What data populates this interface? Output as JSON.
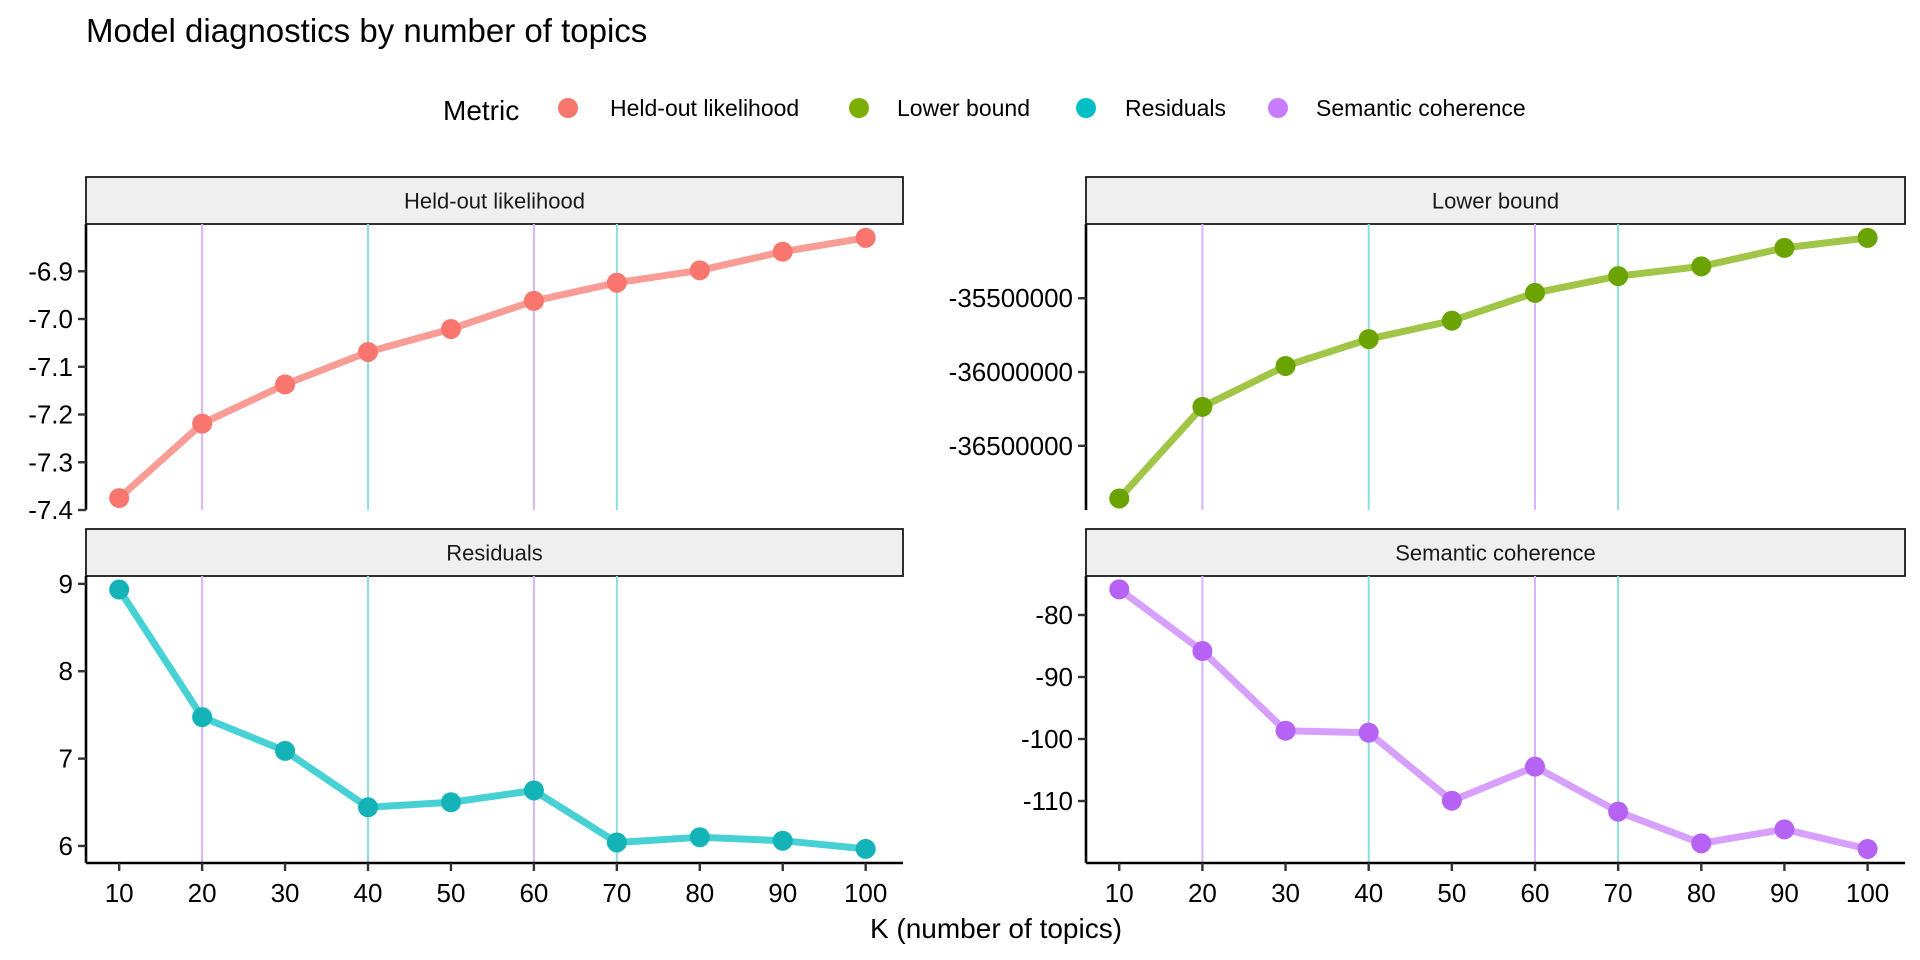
{
  "chart_data": {
    "type": "line",
    "title": "Model diagnostics by number of topics",
    "xlabel": "K (number of topics)",
    "legend": {
      "title": "Metric",
      "position": "top",
      "entries": [
        {
          "label": "Held-out likelihood",
          "color": "#F8766D"
        },
        {
          "label": "Lower bound",
          "color": "#7CAE00"
        },
        {
          "label": "Residuals",
          "color": "#00BFC4"
        },
        {
          "label": "Semantic coherence",
          "color": "#C77CFF"
        }
      ]
    },
    "x": [
      10,
      20,
      30,
      40,
      50,
      60,
      70,
      80,
      90,
      100
    ],
    "x_ticks": [
      "10",
      "20",
      "30",
      "40",
      "50",
      "60",
      "70",
      "80",
      "90",
      "100"
    ],
    "xlim": [
      6,
      104.5
    ],
    "reference_lines": [
      {
        "x": 20,
        "color": "#D9B3FF"
      },
      {
        "x": 40,
        "color": "#8EDCDC"
      },
      {
        "x": 60,
        "color": "#D9B3FF"
      },
      {
        "x": 70,
        "color": "#8EDCDC"
      }
    ],
    "facets": [
      {
        "name": "Held-out likelihood",
        "color": "#F8766D",
        "line_color": "#F8766D",
        "values": [
          -7.375,
          -7.219,
          -7.137,
          -7.069,
          -7.021,
          -6.962,
          -6.924,
          -6.898,
          -6.859,
          -6.83
        ],
        "ylim": [
          -7.4,
          -6.801
        ],
        "y_ticks": [
          -6.9,
          -7.0,
          -7.1,
          -7.2,
          -7.3,
          -7.4
        ],
        "y_tick_labels": [
          "-6.9",
          "-7.0",
          "-7.1",
          "-7.2",
          "-7.3",
          "-7.4"
        ]
      },
      {
        "name": "Lower bound",
        "color": "#6BA300",
        "line_color": "#7CAE00",
        "values": [
          -36857000,
          -36236000,
          -35959000,
          -35777000,
          -35652000,
          -35464000,
          -35350000,
          -35284000,
          -35159000,
          -35091000
        ],
        "ylim": [
          -36935000,
          -34997000
        ],
        "y_ticks": [
          -35500000,
          -36000000,
          -36500000
        ],
        "y_tick_labels": [
          "-35500000",
          "-36000000",
          "-36500000"
        ]
      },
      {
        "name": "Residuals",
        "color": "#14B3B8",
        "line_color": "#00BFC4",
        "values": [
          8.935,
          7.475,
          7.088,
          6.443,
          6.5,
          6.635,
          6.04,
          6.1,
          6.06,
          5.966
        ],
        "ylim": [
          5.805,
          9.09
        ],
        "y_ticks": [
          9,
          8,
          7,
          6
        ],
        "y_tick_labels": [
          "9",
          "8",
          "7",
          "6"
        ]
      },
      {
        "name": "Semantic coherence",
        "color": "#B562F5",
        "line_color": "#C77CFF",
        "values": [
          -75.86,
          -85.81,
          -98.66,
          -98.98,
          -109.95,
          -104.46,
          -111.72,
          -116.83,
          -114.57,
          -117.74
        ],
        "ylim": [
          -120.0,
          -73.71
        ],
        "y_ticks": [
          -80,
          -90,
          -100,
          -110
        ],
        "y_tick_labels": [
          "-80",
          "-90",
          "-100",
          "-110"
        ]
      }
    ]
  }
}
